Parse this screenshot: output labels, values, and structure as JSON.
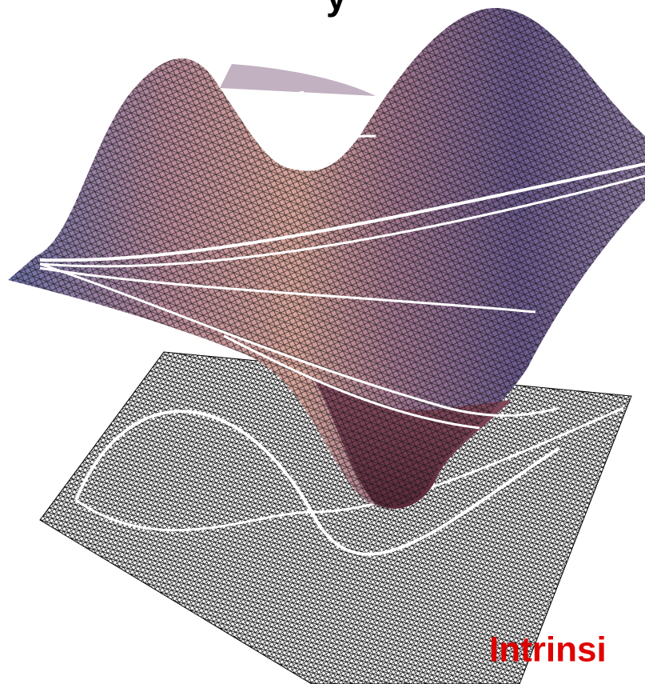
{
  "header": {
    "title_fragment": "y"
  },
  "caption": "Intrinsi"
}
